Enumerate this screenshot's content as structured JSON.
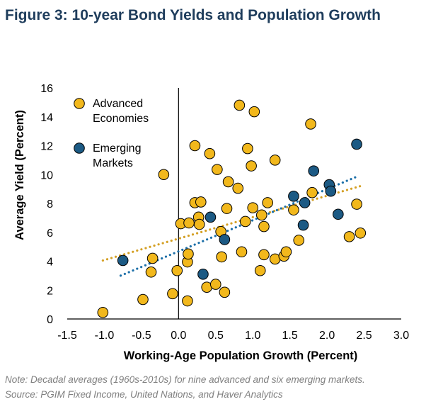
{
  "title": "Figure 3: 10-year Bond Yields and Population Growth",
  "note": "Note: Decadal averages (1960s-2010s) for nine advanced and six emerging markets.",
  "source": "Source: PGIM Fixed Income, United Nations, and Haver Analytics",
  "colors": {
    "title": "#1f3d5c",
    "advanced": "#f2b81c",
    "emerging": "#1c5a84",
    "outline": "#000000",
    "note": "#7f7f7f",
    "trend_advanced": "#d4a025",
    "trend_emerging": "#1c6fa8"
  },
  "chart_data": {
    "type": "scatter",
    "xlabel": "Working-Age Population Growth (Percent)",
    "ylabel": "Average Yield (Percent)",
    "xlim": [
      -1.5,
      3.0
    ],
    "ylim": [
      0,
      16
    ],
    "xticks": [
      -1.5,
      -1.0,
      -0.5,
      0.0,
      0.5,
      1.0,
      1.5,
      2.0,
      2.5,
      3.0
    ],
    "xtick_labels": [
      "-1.5",
      "-1.0",
      "-0.5",
      "0.0",
      "0.5",
      "1.0",
      "1.5",
      "2.0",
      "2.5",
      "3.0"
    ],
    "yticks": [
      0,
      2,
      4,
      6,
      8,
      10,
      12,
      14,
      16
    ],
    "ytick_labels": [
      "0",
      "2",
      "4",
      "6",
      "8",
      "10",
      "12",
      "14",
      "16"
    ],
    "legend_position": "top-left",
    "series": [
      {
        "name": "Advanced Economies",
        "legend_lines": [
          "Advanced",
          "Economies"
        ],
        "color_key": "advanced",
        "points": [
          [
            -1.02,
            0.45
          ],
          [
            -0.48,
            1.35
          ],
          [
            -0.35,
            4.2
          ],
          [
            -0.37,
            3.25
          ],
          [
            -0.2,
            10.0
          ],
          [
            -0.08,
            1.75
          ],
          [
            -0.02,
            3.35
          ],
          [
            0.03,
            6.6
          ],
          [
            0.12,
            1.25
          ],
          [
            0.12,
            3.95
          ],
          [
            0.13,
            4.5
          ],
          [
            0.14,
            6.65
          ],
          [
            0.22,
            12.0
          ],
          [
            0.22,
            8.05
          ],
          [
            0.27,
            7.05
          ],
          [
            0.3,
            8.1
          ],
          [
            0.28,
            6.55
          ],
          [
            0.38,
            2.2
          ],
          [
            0.42,
            11.45
          ],
          [
            0.5,
            2.4
          ],
          [
            0.52,
            10.35
          ],
          [
            0.57,
            6.05
          ],
          [
            0.58,
            4.3
          ],
          [
            0.62,
            1.85
          ],
          [
            0.65,
            7.65
          ],
          [
            0.67,
            9.5
          ],
          [
            0.8,
            9.05
          ],
          [
            0.82,
            14.8
          ],
          [
            0.85,
            4.65
          ],
          [
            0.9,
            6.75
          ],
          [
            0.93,
            11.8
          ],
          [
            0.98,
            10.6
          ],
          [
            1.0,
            7.7
          ],
          [
            1.02,
            14.35
          ],
          [
            1.1,
            3.35
          ],
          [
            1.12,
            7.2
          ],
          [
            1.15,
            6.4
          ],
          [
            1.15,
            4.45
          ],
          [
            1.2,
            8.05
          ],
          [
            1.3,
            11.0
          ],
          [
            1.3,
            4.15
          ],
          [
            1.42,
            4.35
          ],
          [
            1.45,
            4.65
          ],
          [
            1.55,
            7.55
          ],
          [
            1.62,
            5.45
          ],
          [
            1.78,
            13.5
          ],
          [
            1.8,
            8.75
          ],
          [
            2.3,
            5.7
          ],
          [
            2.4,
            7.95
          ],
          [
            2.45,
            5.95
          ]
        ]
      },
      {
        "name": "Emerging Markets",
        "legend_lines": [
          "Emerging",
          "Markets"
        ],
        "color_key": "emerging",
        "points": [
          [
            -0.75,
            4.05
          ],
          [
            0.33,
            3.1
          ],
          [
            0.43,
            7.05
          ],
          [
            0.62,
            5.5
          ],
          [
            1.55,
            8.5
          ],
          [
            1.68,
            6.5
          ],
          [
            1.7,
            8.05
          ],
          [
            1.82,
            10.25
          ],
          [
            2.03,
            9.3
          ],
          [
            2.05,
            8.85
          ],
          [
            2.15,
            7.25
          ],
          [
            2.4,
            12.1
          ]
        ]
      }
    ],
    "trendlines": [
      {
        "series": "Advanced Economies",
        "color_key": "trend_advanced",
        "from": [
          -1.02,
          4.05
        ],
        "to": [
          2.45,
          9.2
        ]
      },
      {
        "series": "Emerging Markets",
        "color_key": "trend_emerging",
        "from": [
          -0.78,
          3.0
        ],
        "to": [
          2.4,
          9.85
        ]
      }
    ]
  }
}
